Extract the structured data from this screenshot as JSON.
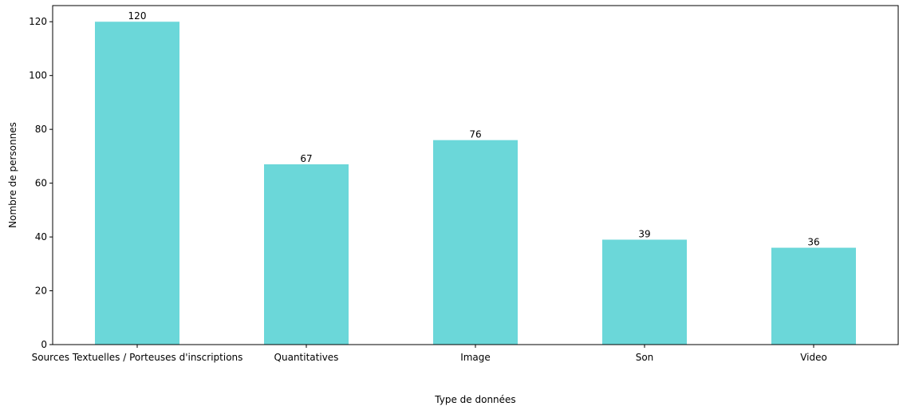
{
  "chart_data": {
    "type": "bar",
    "title": "",
    "xlabel": "Type de données",
    "ylabel": "Nombre de personnes",
    "categories": [
      "Sources Textuelles / Porteuses d'inscriptions",
      "Quantitatives",
      "Image",
      "Son",
      "Video"
    ],
    "values": [
      120,
      67,
      76,
      39,
      36
    ],
    "ylim": [
      0,
      126
    ],
    "yticks": [
      0,
      20,
      40,
      60,
      80,
      100,
      120
    ],
    "bar_color": "#6bd7d9",
    "grid": false,
    "legend": "none"
  }
}
